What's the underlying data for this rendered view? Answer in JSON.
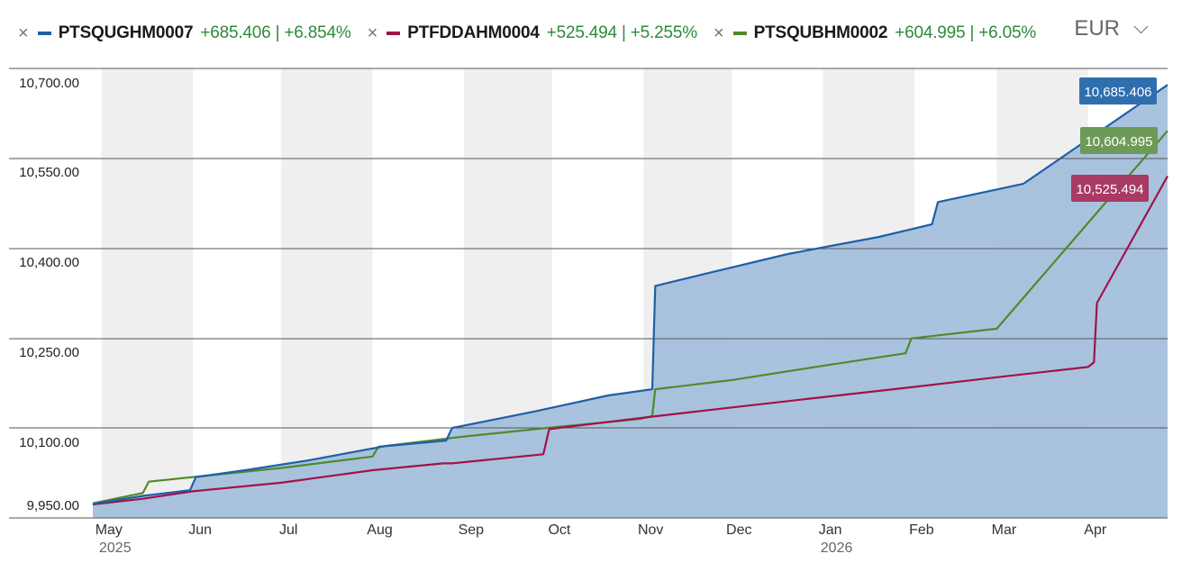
{
  "chart_data": {
    "type": "area",
    "title": "",
    "currency": "EUR",
    "ylim": [
      9950,
      10700
    ],
    "y_ticks": [
      "10,700.00",
      "10,550.00",
      "10,400.00",
      "10,250.00",
      "10,100.00",
      "9,950.00"
    ],
    "y_tick_values": [
      10700,
      10550,
      10400,
      10250,
      10100,
      9950
    ],
    "x_range": [
      "2025-04-28",
      "2026-04-28"
    ],
    "x_ticks": [
      {
        "date": "2025-05-01",
        "label": "May",
        "year": "2025"
      },
      {
        "date": "2025-06-01",
        "label": "Jun",
        "year": ""
      },
      {
        "date": "2025-07-01",
        "label": "Jul",
        "year": ""
      },
      {
        "date": "2025-08-01",
        "label": "Aug",
        "year": ""
      },
      {
        "date": "2025-09-01",
        "label": "Sep",
        "year": ""
      },
      {
        "date": "2025-10-01",
        "label": "Oct",
        "year": ""
      },
      {
        "date": "2025-11-01",
        "label": "Nov",
        "year": ""
      },
      {
        "date": "2025-12-01",
        "label": "Dec",
        "year": ""
      },
      {
        "date": "2026-01-01",
        "label": "Jan",
        "year": "2026"
      },
      {
        "date": "2026-02-01",
        "label": "Feb",
        "year": ""
      },
      {
        "date": "2026-03-01",
        "label": "Mar",
        "year": ""
      },
      {
        "date": "2026-04-01",
        "label": "Apr",
        "year": ""
      }
    ],
    "series": [
      {
        "name": "PTSQUGHM0007",
        "color": "#1f5fa8",
        "area": true,
        "area_color": "#a2bedc",
        "change": "+685.406 | +6.854%",
        "last_label": "10,685.406",
        "points": [
          [
            "2025-04-28",
            9951
          ],
          [
            "2025-05-15",
            9965
          ],
          [
            "2025-05-31",
            9975
          ],
          [
            "2025-06-02",
            9998
          ],
          [
            "2025-06-20",
            10011
          ],
          [
            "2025-07-10",
            10027
          ],
          [
            "2025-08-05",
            10052
          ],
          [
            "2025-08-26",
            10062
          ],
          [
            "2025-08-28",
            10084
          ],
          [
            "2025-09-25",
            10113
          ],
          [
            "2025-10-20",
            10141
          ],
          [
            "2025-11-04",
            10152
          ],
          [
            "2025-11-05",
            10333
          ],
          [
            "2025-11-25",
            10358
          ],
          [
            "2025-12-20",
            10389
          ],
          [
            "2026-01-20",
            10419
          ],
          [
            "2026-02-07",
            10441
          ],
          [
            "2026-02-09",
            10480
          ],
          [
            "2026-03-10",
            10512
          ],
          [
            "2026-04-28",
            10685.406
          ]
        ]
      },
      {
        "name": "PTFDDAHM0004",
        "color": "#a0134a",
        "area": false,
        "change": "+525.494 | +5.255%",
        "last_label": "10,525.494",
        "points": [
          [
            "2025-04-28",
            9950
          ],
          [
            "2025-05-15",
            9960
          ],
          [
            "2025-06-01",
            9973
          ],
          [
            "2025-07-01",
            9988
          ],
          [
            "2025-08-01",
            10010
          ],
          [
            "2025-08-25",
            10022
          ],
          [
            "2025-08-28",
            10022
          ],
          [
            "2025-09-28",
            10038
          ],
          [
            "2025-09-30",
            10082
          ],
          [
            "2025-11-04",
            10104
          ],
          [
            "2025-12-01",
            10120
          ],
          [
            "2026-01-01",
            10138
          ],
          [
            "2026-02-01",
            10156
          ],
          [
            "2026-03-01",
            10173
          ],
          [
            "2026-04-01",
            10191
          ],
          [
            "2026-04-03",
            10199
          ],
          [
            "2026-04-04",
            10303
          ],
          [
            "2026-04-28",
            10525.494
          ]
        ]
      },
      {
        "name": "PTSQUBHM0002",
        "color": "#4f8a2a",
        "area": false,
        "change": "+604.995 | +6.05%",
        "last_label": "10,604.995",
        "points": [
          [
            "2025-04-28",
            9952
          ],
          [
            "2025-05-15",
            9970
          ],
          [
            "2025-05-17",
            9990
          ],
          [
            "2025-07-01",
            10014
          ],
          [
            "2025-08-01",
            10034
          ],
          [
            "2025-08-03",
            10051
          ],
          [
            "2025-09-01",
            10069
          ],
          [
            "2025-10-01",
            10085
          ],
          [
            "2025-10-31",
            10100
          ],
          [
            "2025-11-04",
            10105
          ],
          [
            "2025-11-05",
            10152
          ],
          [
            "2025-12-01",
            10168
          ],
          [
            "2026-01-01",
            10193
          ],
          [
            "2026-01-29",
            10215
          ],
          [
            "2026-01-31",
            10241
          ],
          [
            "2026-03-01",
            10258
          ],
          [
            "2026-04-28",
            10604.995
          ]
        ]
      }
    ]
  }
}
